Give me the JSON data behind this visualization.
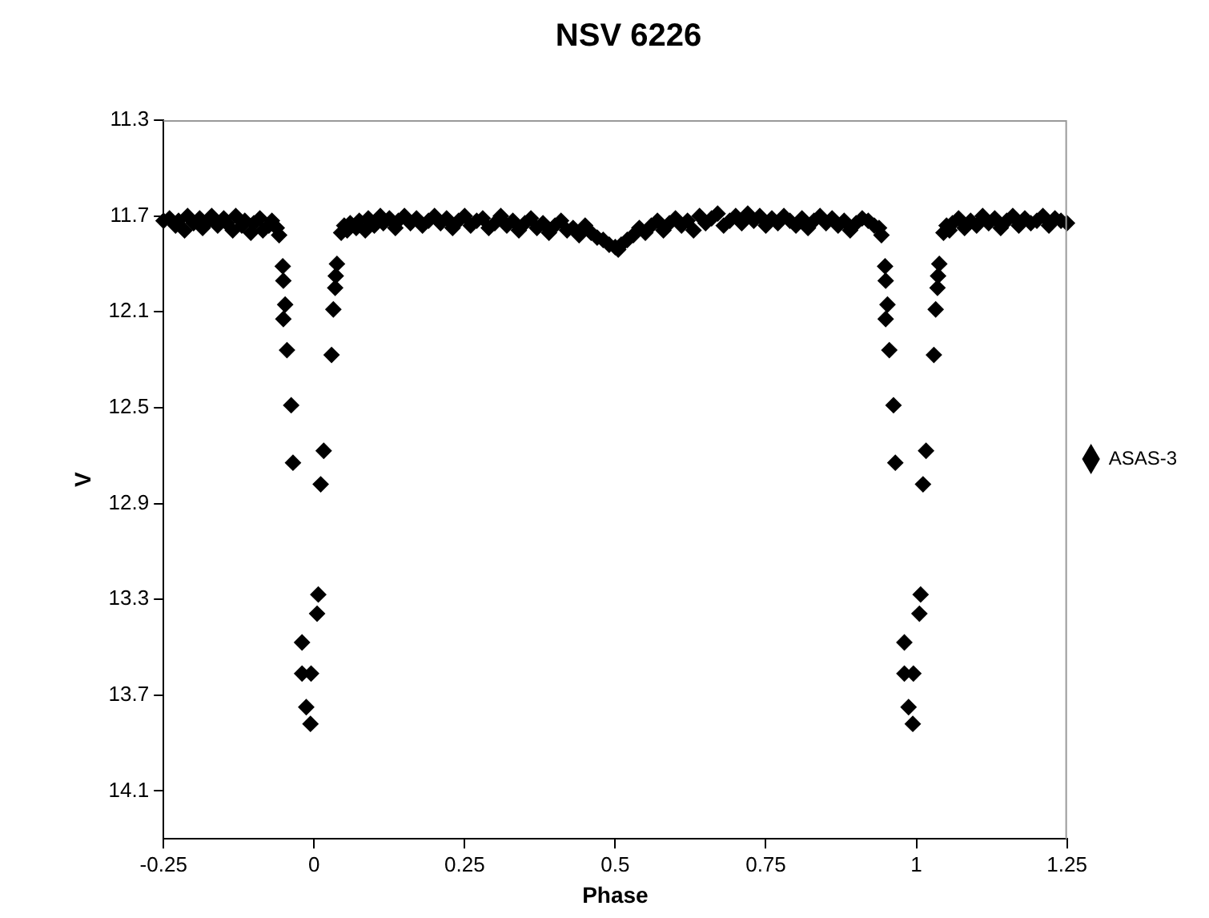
{
  "chart_data": {
    "type": "scatter",
    "title": "NSV 6226",
    "xlabel": "Phase",
    "ylabel": "V",
    "xlim": [
      -0.25,
      1.25
    ],
    "xticks": [
      -0.25,
      0,
      0.25,
      0.5,
      0.75,
      1,
      1.25
    ],
    "ylim": [
      14.3,
      11.3
    ],
    "yticks": [
      11.3,
      11.7,
      12.1,
      12.5,
      12.9,
      13.3,
      13.7,
      14.1
    ],
    "grid": false,
    "legend": "right",
    "marker": "diamond",
    "series": [
      {
        "name": "ASAS-3",
        "color": "#000000",
        "x": [
          -0.25,
          -0.24,
          -0.23,
          -0.225,
          -0.215,
          -0.21,
          -0.2,
          -0.19,
          -0.185,
          -0.175,
          -0.17,
          -0.16,
          -0.15,
          -0.145,
          -0.135,
          -0.13,
          -0.12,
          -0.115,
          -0.105,
          -0.1,
          -0.09,
          -0.085,
          -0.075,
          -0.07,
          -0.062,
          -0.058,
          -0.052,
          -0.051,
          -0.048,
          -0.051,
          -0.045,
          -0.038,
          -0.035,
          -0.02,
          -0.02,
          -0.013,
          -0.006,
          -0.005,
          0.005,
          0.007,
          0.011,
          0.016,
          0.029,
          0.032,
          0.035,
          0.036,
          0.038,
          0.045,
          0.05,
          0.055,
          0.06,
          0.07,
          0.075,
          0.085,
          0.09,
          0.1,
          0.11,
          0.115,
          0.125,
          0.135,
          0.14,
          0.15,
          0.16,
          0.17,
          0.18,
          0.19,
          0.2,
          0.21,
          0.22,
          0.23,
          0.24,
          0.25,
          0.26,
          0.27,
          0.28,
          0.29,
          0.3,
          0.31,
          0.32,
          0.33,
          0.34,
          0.35,
          0.36,
          0.37,
          0.38,
          0.39,
          0.4,
          0.41,
          0.42,
          0.43,
          0.44,
          0.45,
          0.46,
          0.47,
          0.48,
          0.49,
          0.5,
          0.505,
          0.51,
          0.52,
          0.53,
          0.54,
          0.55,
          0.56,
          0.57,
          0.58,
          0.59,
          0.6,
          0.61,
          0.62,
          0.63,
          0.64,
          0.65,
          0.66,
          0.67,
          0.68,
          0.69,
          0.7,
          0.71,
          0.72,
          0.73,
          0.74,
          0.75,
          0.76,
          0.77,
          0.78,
          0.79,
          0.8,
          0.81,
          0.82,
          0.83,
          0.84,
          0.85,
          0.86,
          0.87,
          0.88,
          0.89,
          0.9,
          0.91,
          0.92,
          0.93,
          0.938,
          0.942,
          0.948,
          0.949,
          0.952,
          0.949,
          0.955,
          0.962,
          0.965,
          0.98,
          0.98,
          0.987,
          0.994,
          0.995,
          1.005,
          1.007,
          1.011,
          1.016,
          1.029,
          1.032,
          1.035,
          1.036,
          1.038,
          1.045,
          1.05,
          1.055,
          1.06,
          1.07,
          1.08,
          1.09,
          1.1,
          1.11,
          1.12,
          1.13,
          1.14,
          1.15,
          1.16,
          1.17,
          1.18,
          1.19,
          1.2,
          1.21,
          1.22,
          1.23,
          1.24,
          1.25
        ],
        "values": [
          11.72,
          11.71,
          11.74,
          11.72,
          11.76,
          11.7,
          11.73,
          11.71,
          11.75,
          11.72,
          11.7,
          11.74,
          11.71,
          11.73,
          11.76,
          11.7,
          11.74,
          11.72,
          11.77,
          11.73,
          11.71,
          11.76,
          11.74,
          11.72,
          11.75,
          11.78,
          11.91,
          11.97,
          12.07,
          12.13,
          12.26,
          12.49,
          12.73,
          13.48,
          13.61,
          13.75,
          13.82,
          13.61,
          13.36,
          13.28,
          12.82,
          12.68,
          12.28,
          12.09,
          12.0,
          11.95,
          11.9,
          11.77,
          11.74,
          11.76,
          11.73,
          11.75,
          11.72,
          11.76,
          11.71,
          11.74,
          11.7,
          11.73,
          11.71,
          11.75,
          11.72,
          11.7,
          11.73,
          11.71,
          11.74,
          11.72,
          11.7,
          11.73,
          11.71,
          11.75,
          11.72,
          11.7,
          11.74,
          11.72,
          11.71,
          11.75,
          11.73,
          11.7,
          11.74,
          11.72,
          11.76,
          11.73,
          11.71,
          11.75,
          11.73,
          11.77,
          11.74,
          11.72,
          11.76,
          11.75,
          11.78,
          11.74,
          11.77,
          11.79,
          11.8,
          11.82,
          11.83,
          11.84,
          11.82,
          11.8,
          11.78,
          11.75,
          11.77,
          11.74,
          11.72,
          11.76,
          11.73,
          11.71,
          11.74,
          11.72,
          11.76,
          11.7,
          11.73,
          11.71,
          11.69,
          11.74,
          11.72,
          11.7,
          11.73,
          11.69,
          11.72,
          11.7,
          11.74,
          11.71,
          11.73,
          11.7,
          11.72,
          11.74,
          11.71,
          11.75,
          11.72,
          11.7,
          11.73,
          11.71,
          11.74,
          11.72,
          11.76,
          11.73,
          11.71,
          11.72,
          11.74,
          11.75,
          11.78,
          11.91,
          11.97,
          12.07,
          12.13,
          12.26,
          12.49,
          12.73,
          13.48,
          13.61,
          13.75,
          13.82,
          13.61,
          13.36,
          13.28,
          12.82,
          12.68,
          12.28,
          12.09,
          12.0,
          11.95,
          11.9,
          11.77,
          11.74,
          11.76,
          11.73,
          11.71,
          11.75,
          11.72,
          11.74,
          11.7,
          11.73,
          11.71,
          11.75,
          11.72,
          11.7,
          11.74,
          11.71,
          11.73,
          11.72,
          11.7,
          11.74,
          11.71,
          11.72,
          11.73
        ]
      }
    ]
  }
}
